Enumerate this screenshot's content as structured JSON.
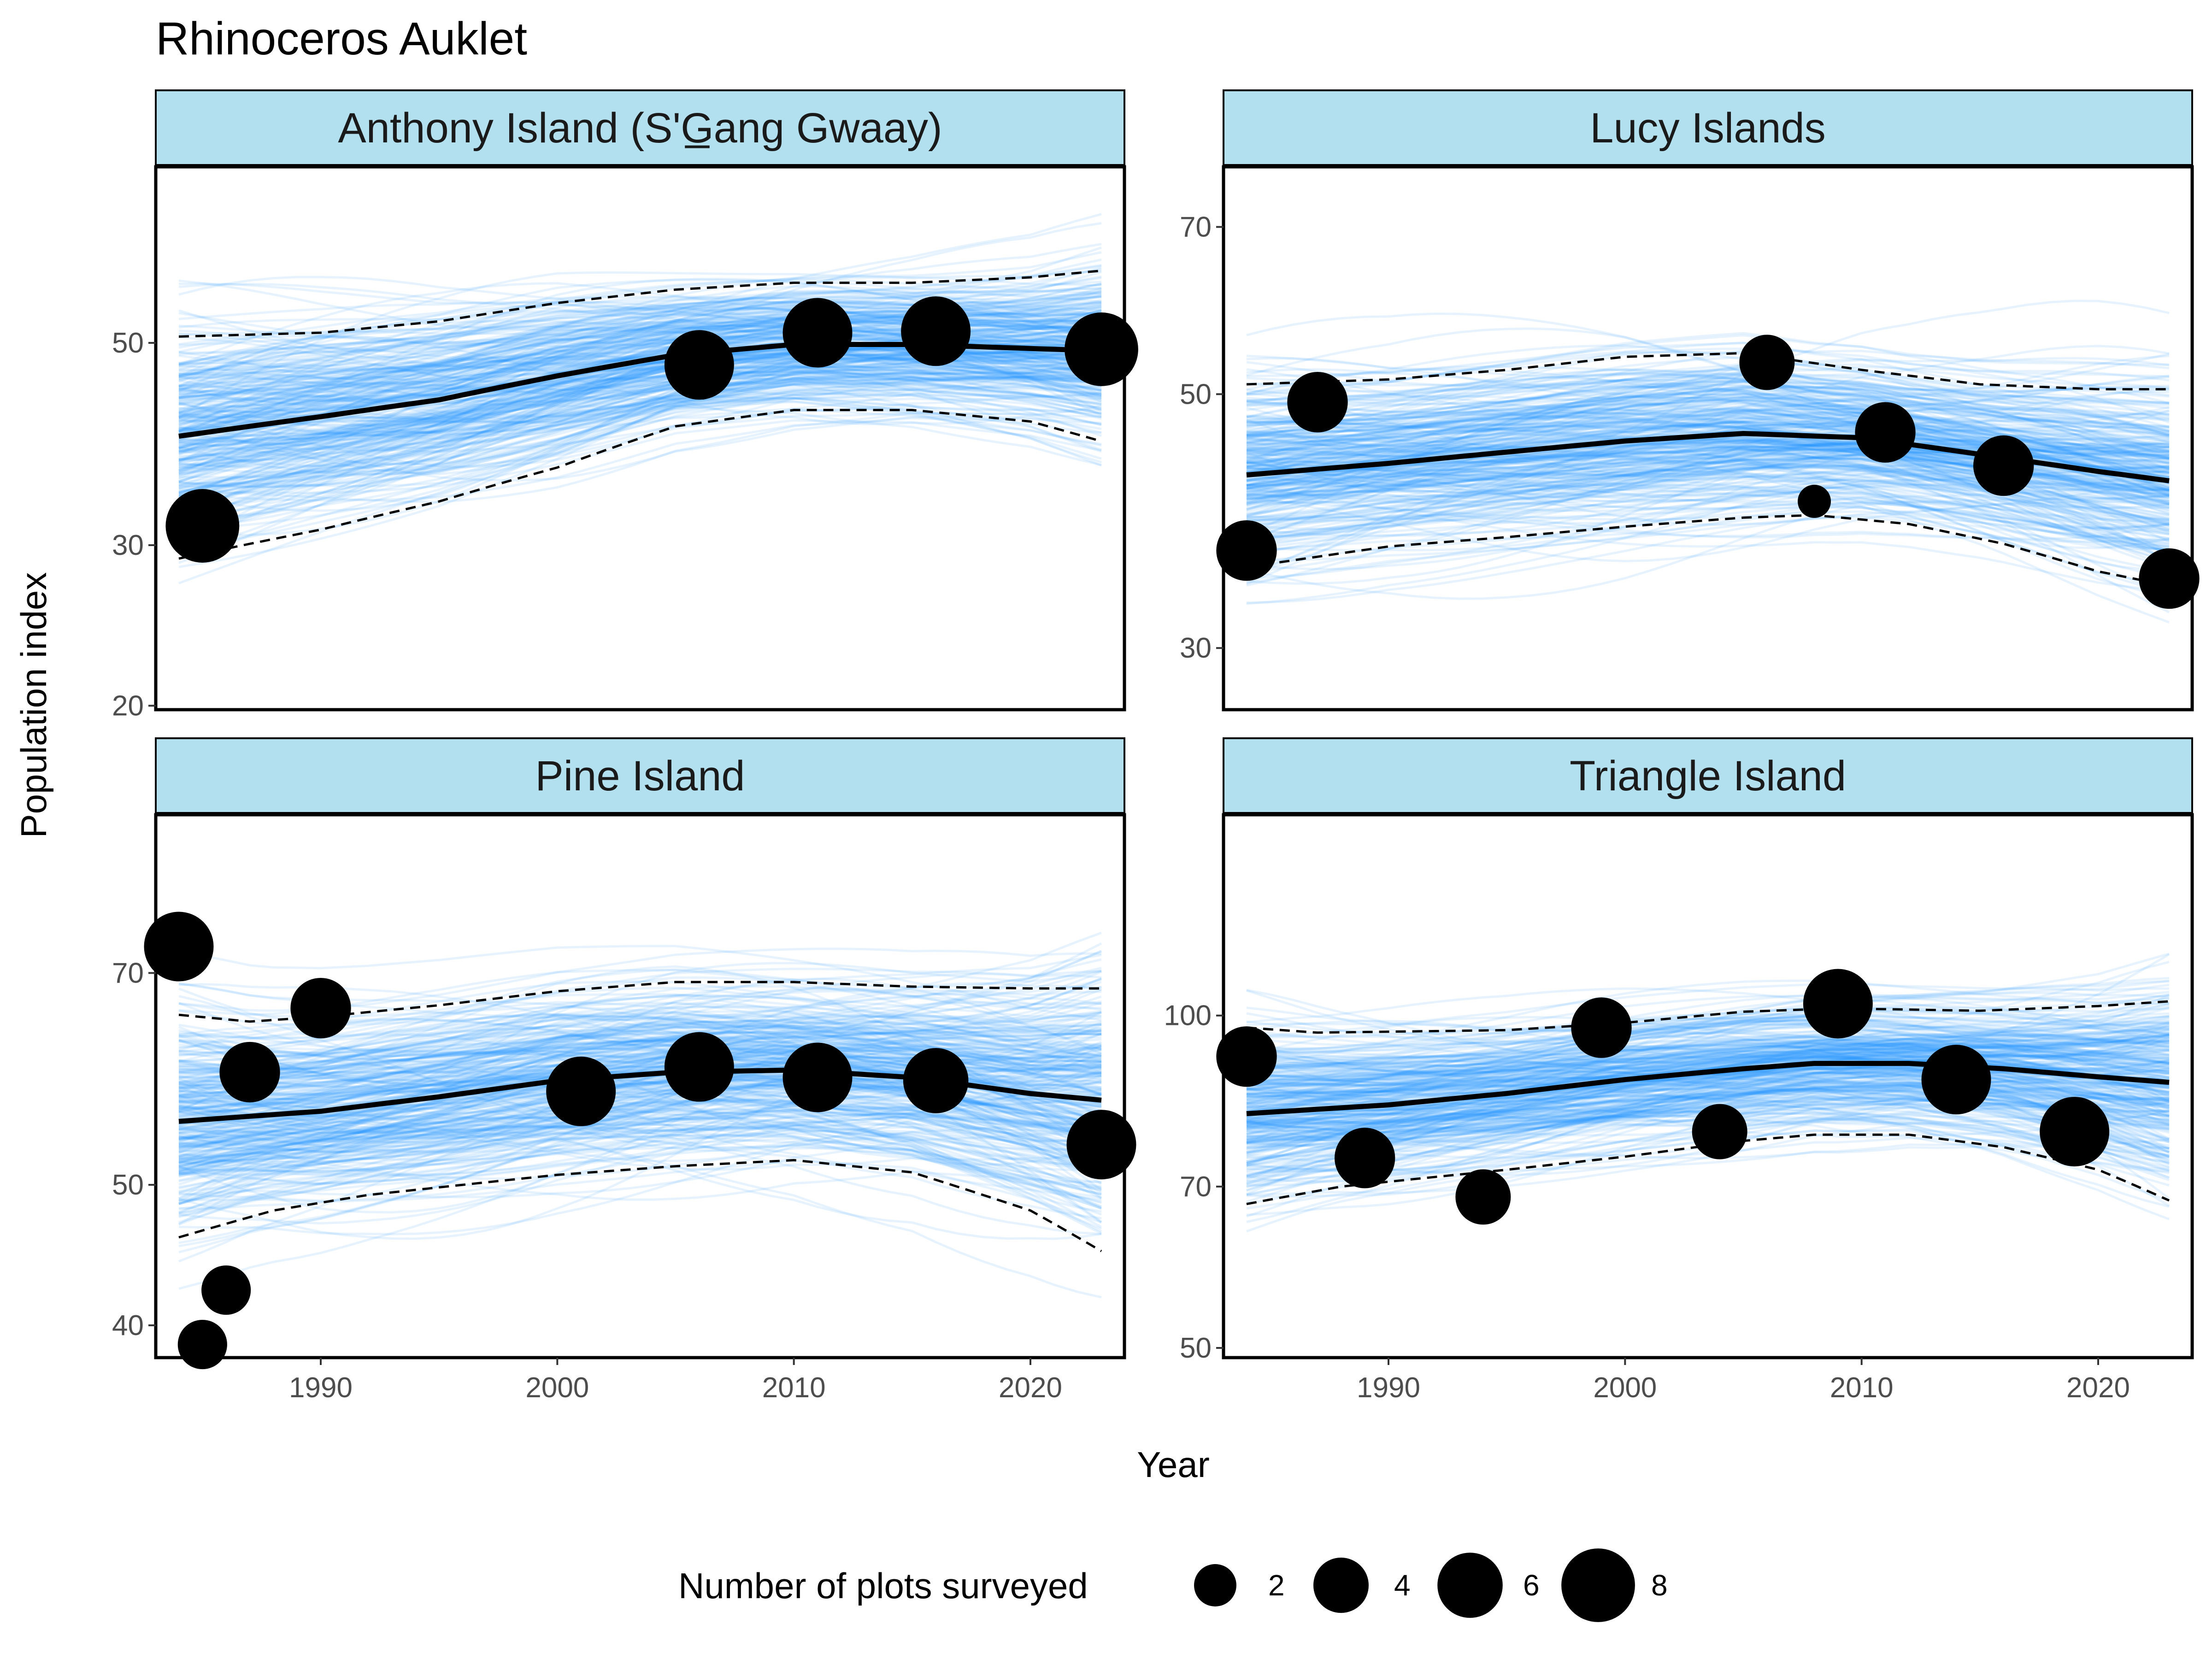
{
  "title": "Rhinoceros Auklet",
  "xlabel": "Year",
  "ylabel": "Population index",
  "colors": {
    "draws": "#1e90ff",
    "strip_fill": "#b3e0ef",
    "frame": "#000000",
    "points": "#000000"
  },
  "legend": {
    "title": "Number of plots surveyed",
    "placement": "bottom",
    "items": [
      {
        "label": "2",
        "value": 2
      },
      {
        "label": "4",
        "value": 4
      },
      {
        "label": "6",
        "value": 6
      },
      {
        "label": "8",
        "value": 8
      }
    ]
  },
  "chart_data": {
    "type": "line",
    "x_range": [
      1984,
      2023
    ],
    "x_ticks": [
      1990,
      2000,
      2010,
      2020
    ],
    "y_scale": "log",
    "panels": [
      {
        "name": "Anthony Island (S'G̲ang Gwaay)",
        "ylim": [
          19.8,
          78
        ],
        "y_ticks": [
          20,
          30,
          50
        ],
        "trend": [
          [
            1984,
            39.5
          ],
          [
            1990,
            41.5
          ],
          [
            1995,
            43.3
          ],
          [
            2000,
            46
          ],
          [
            2005,
            48.5
          ],
          [
            2010,
            49.8
          ],
          [
            2015,
            49.8
          ],
          [
            2020,
            49.3
          ],
          [
            2023,
            49
          ]
        ],
        "lower": [
          [
            1984,
            29
          ],
          [
            1990,
            31.2
          ],
          [
            1995,
            33.5
          ],
          [
            2000,
            36.5
          ],
          [
            2005,
            40.5
          ],
          [
            2010,
            42.2
          ],
          [
            2015,
            42.2
          ],
          [
            2020,
            41
          ],
          [
            2023,
            39
          ]
        ],
        "upper": [
          [
            1984,
            50.8
          ],
          [
            1990,
            51.3
          ],
          [
            1995,
            52.8
          ],
          [
            2000,
            55.3
          ],
          [
            2005,
            57.2
          ],
          [
            2010,
            58.2
          ],
          [
            2015,
            58.2
          ],
          [
            2020,
            59
          ],
          [
            2023,
            60
          ]
        ],
        "observations": [
          {
            "year": 1985,
            "index": 31.5,
            "plots": 8
          },
          {
            "year": 2006,
            "index": 47.3,
            "plots": 7
          },
          {
            "year": 2011,
            "index": 51.3,
            "plots": 7
          },
          {
            "year": 2016,
            "index": 51.5,
            "plots": 7
          },
          {
            "year": 2023,
            "index": 49.2,
            "plots": 8
          }
        ]
      },
      {
        "name": "Lucy Islands",
        "ylim": [
          26.5,
          79
        ],
        "y_ticks": [
          30,
          50,
          70
        ],
        "trend": [
          [
            1984,
            42.5
          ],
          [
            1990,
            43.5
          ],
          [
            1995,
            44.5
          ],
          [
            2000,
            45.5
          ],
          [
            2005,
            46.2
          ],
          [
            2010,
            45.8
          ],
          [
            2015,
            44.3
          ],
          [
            2020,
            42.8
          ],
          [
            2023,
            42
          ]
        ],
        "lower": [
          [
            1984,
            35.3
          ],
          [
            1990,
            36.8
          ],
          [
            1995,
            37.5
          ],
          [
            2000,
            38.3
          ],
          [
            2005,
            39
          ],
          [
            2008,
            39.2
          ],
          [
            2012,
            38.5
          ],
          [
            2016,
            37
          ],
          [
            2020,
            35
          ],
          [
            2023,
            34
          ]
        ],
        "upper": [
          [
            1984,
            51
          ],
          [
            1990,
            51.5
          ],
          [
            1995,
            52.5
          ],
          [
            2000,
            53.9
          ],
          [
            2005,
            54.3
          ],
          [
            2010,
            52.5
          ],
          [
            2015,
            51
          ],
          [
            2020,
            50.5
          ],
          [
            2023,
            50.5
          ]
        ],
        "observations": [
          {
            "year": 1984,
            "index": 36.5,
            "plots": 5
          },
          {
            "year": 1987,
            "index": 49.2,
            "plots": 5
          },
          {
            "year": 2006,
            "index": 53.3,
            "plots": 4
          },
          {
            "year": 2008,
            "index": 40.3,
            "plots": 1
          },
          {
            "year": 2011,
            "index": 46.3,
            "plots": 5
          },
          {
            "year": 2016,
            "index": 43.3,
            "plots": 5
          },
          {
            "year": 2023,
            "index": 34.5,
            "plots": 5
          }
        ]
      },
      {
        "name": "Pine Island",
        "ylim": [
          38,
          90
        ],
        "y_ticks": [
          40,
          50,
          70
        ],
        "trend": [
          [
            1984,
            55.3
          ],
          [
            1990,
            56.2
          ],
          [
            1995,
            57.5
          ],
          [
            2000,
            59
          ],
          [
            2005,
            59.8
          ],
          [
            2010,
            60
          ],
          [
            2015,
            59.3
          ],
          [
            2020,
            57.8
          ],
          [
            2023,
            57.2
          ]
        ],
        "lower": [
          [
            1984,
            46
          ],
          [
            1988,
            48
          ],
          [
            1992,
            49.2
          ],
          [
            1995,
            49.8
          ],
          [
            2000,
            50.8
          ],
          [
            2005,
            51.5
          ],
          [
            2010,
            52
          ],
          [
            2015,
            51
          ],
          [
            2020,
            48
          ],
          [
            2023,
            45
          ]
        ],
        "upper": [
          [
            1984,
            65.5
          ],
          [
            1987,
            64.8
          ],
          [
            1990,
            65.3
          ],
          [
            1995,
            66.5
          ],
          [
            2000,
            68
          ],
          [
            2005,
            69
          ],
          [
            2010,
            69
          ],
          [
            2015,
            68.5
          ],
          [
            2020,
            68.3
          ],
          [
            2023,
            68.3
          ]
        ],
        "observations": [
          {
            "year": 1984,
            "index": 73,
            "plots": 7
          },
          {
            "year": 1985,
            "index": 38.8,
            "plots": 3
          },
          {
            "year": 1986,
            "index": 42.3,
            "plots": 3
          },
          {
            "year": 1987,
            "index": 59.8,
            "plots": 5
          },
          {
            "year": 1990,
            "index": 66.2,
            "plots": 5
          },
          {
            "year": 2001,
            "index": 58,
            "plots": 7
          },
          {
            "year": 2006,
            "index": 60.3,
            "plots": 7
          },
          {
            "year": 2011,
            "index": 59.3,
            "plots": 7
          },
          {
            "year": 2016,
            "index": 59,
            "plots": 6
          },
          {
            "year": 2023,
            "index": 53.3,
            "plots": 7
          }
        ]
      },
      {
        "name": "Triangle Island",
        "ylim": [
          49,
          152
        ],
        "y_ticks": [
          50,
          70,
          100
        ],
        "trend": [
          [
            1984,
            81.5
          ],
          [
            1990,
            83
          ],
          [
            1995,
            85
          ],
          [
            2000,
            87.5
          ],
          [
            2005,
            89.5
          ],
          [
            2008,
            90.5
          ],
          [
            2012,
            90.5
          ],
          [
            2016,
            89.5
          ],
          [
            2020,
            88
          ],
          [
            2023,
            87
          ]
        ],
        "lower": [
          [
            1984,
            67.5
          ],
          [
            1988,
            70
          ],
          [
            1995,
            72.5
          ],
          [
            2000,
            74.5
          ],
          [
            2005,
            77
          ],
          [
            2008,
            78
          ],
          [
            2012,
            78
          ],
          [
            2016,
            76
          ],
          [
            2020,
            72.5
          ],
          [
            2023,
            68
          ]
        ],
        "upper": [
          [
            1984,
            97.5
          ],
          [
            1987,
            96.5
          ],
          [
            1995,
            97
          ],
          [
            2000,
            98.5
          ],
          [
            2005,
            100.8
          ],
          [
            2009,
            101.5
          ],
          [
            2015,
            101
          ],
          [
            2020,
            102
          ],
          [
            2023,
            103
          ]
        ],
        "observations": [
          {
            "year": 1984,
            "index": 91.8,
            "plots": 5
          },
          {
            "year": 1989,
            "index": 74.3,
            "plots": 5
          },
          {
            "year": 1994,
            "index": 68.5,
            "plots": 4
          },
          {
            "year": 1999,
            "index": 97.5,
            "plots": 5
          },
          {
            "year": 2004,
            "index": 78.5,
            "plots": 4
          },
          {
            "year": 2009,
            "index": 102.5,
            "plots": 7
          },
          {
            "year": 2014,
            "index": 87.5,
            "plots": 7
          },
          {
            "year": 2019,
            "index": 78.5,
            "plots": 7
          }
        ]
      }
    ]
  }
}
